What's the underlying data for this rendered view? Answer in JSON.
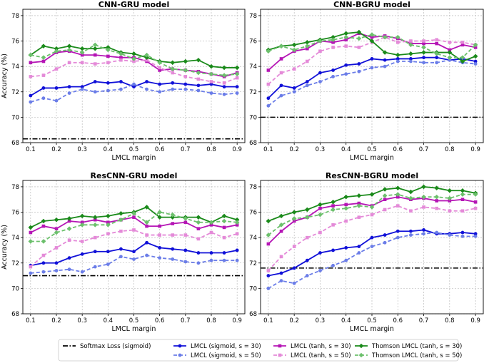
{
  "chart_data": [
    {
      "type": "line",
      "title": "CNN-GRU model",
      "xlabel": "LMCL margin",
      "ylabel": "Accuracy (%)",
      "ylim": [
        68,
        78.5
      ],
      "yticks": [
        68,
        70,
        72,
        74,
        76,
        78
      ],
      "x": [
        0.1,
        0.15,
        0.2,
        0.25,
        0.3,
        0.35,
        0.4,
        0.45,
        0.5,
        0.55,
        0.6,
        0.65,
        0.7,
        0.75,
        0.8,
        0.85,
        0.9
      ],
      "softmax": 68.3,
      "series": [
        {
          "name": "LMCL (sigmoid, s = 30)",
          "values": [
            71.7,
            72.3,
            72.3,
            72.4,
            72.4,
            72.8,
            72.7,
            72.8,
            72.4,
            72.8,
            72.6,
            72.7,
            72.6,
            72.5,
            72.6,
            72.4,
            72.4
          ]
        },
        {
          "name": "LMCL (sigmoid, s = 50)",
          "values": [
            71.2,
            71.5,
            71.3,
            71.9,
            72.2,
            72.0,
            72.1,
            72.2,
            72.6,
            72.2,
            72.0,
            72.2,
            72.2,
            72.1,
            71.9,
            71.8,
            71.9
          ]
        },
        {
          "name": "LMCL (tanh, s = 30)",
          "values": [
            74.3,
            74.4,
            75.1,
            75.2,
            74.9,
            74.9,
            74.8,
            74.7,
            74.7,
            74.4,
            73.7,
            73.8,
            73.7,
            73.6,
            73.4,
            73.2,
            73.5
          ]
        },
        {
          "name": "LMCL (tanh, s = 50)",
          "values": [
            73.2,
            73.3,
            73.8,
            74.3,
            74.3,
            74.2,
            74.3,
            74.5,
            74.4,
            74.5,
            73.9,
            73.5,
            73.2,
            73.0,
            72.8,
            72.7,
            73.1
          ]
        },
        {
          "name": "Thomson LMCL (tanh, s = 30)",
          "values": [
            74.9,
            75.6,
            75.4,
            75.6,
            75.4,
            75.4,
            75.5,
            75.1,
            75.0,
            74.7,
            74.4,
            74.3,
            74.4,
            74.5,
            74.0,
            73.9,
            73.9
          ]
        },
        {
          "name": "Thomson LMCL (tanh, s = 50)",
          "values": [
            74.9,
            74.7,
            75.2,
            75.3,
            75.1,
            75.7,
            75.3,
            75.0,
            74.6,
            74.9,
            74.3,
            73.8,
            73.7,
            73.5,
            73.4,
            73.3,
            73.4
          ]
        }
      ]
    },
    {
      "type": "line",
      "title": "CNN-BGRU model",
      "xlabel": "LMCL margin",
      "ylabel": "",
      "ylim": [
        68,
        78.5
      ],
      "yticks": [
        68,
        70,
        72,
        74,
        76,
        78
      ],
      "x": [
        0.1,
        0.15,
        0.2,
        0.25,
        0.3,
        0.35,
        0.4,
        0.45,
        0.5,
        0.55,
        0.6,
        0.65,
        0.7,
        0.75,
        0.8,
        0.85,
        0.9
      ],
      "softmax": 70.0,
      "series": [
        {
          "name": "LMCL (sigmoid, s = 30)",
          "values": [
            71.5,
            72.5,
            72.3,
            72.8,
            73.5,
            73.7,
            74.1,
            74.2,
            74.6,
            74.5,
            74.6,
            74.6,
            74.7,
            74.7,
            74.5,
            74.6,
            74.4
          ]
        },
        {
          "name": "LMCL (sigmoid, s = 50)",
          "values": [
            70.9,
            71.7,
            72.0,
            72.5,
            72.8,
            73.2,
            73.4,
            73.6,
            73.9,
            74.0,
            74.4,
            74.4,
            74.3,
            74.3,
            74.5,
            74.3,
            74.2
          ]
        },
        {
          "name": "LMCL (tanh, s = 30)",
          "values": [
            73.7,
            74.6,
            75.2,
            75.4,
            76.0,
            75.9,
            76.1,
            76.6,
            76.3,
            76.4,
            76.2,
            75.8,
            75.8,
            75.8,
            75.3,
            75.7,
            75.5
          ]
        },
        {
          "name": "LMCL (tanh, s = 50)",
          "values": [
            72.6,
            73.5,
            73.8,
            74.4,
            75.2,
            75.5,
            75.6,
            75.5,
            75.9,
            76.3,
            75.9,
            76.0,
            76.0,
            76.1,
            75.9,
            75.9,
            75.7
          ]
        },
        {
          "name": "Thomson LMCL (tanh, s = 30)",
          "values": [
            75.3,
            75.6,
            75.7,
            75.9,
            76.1,
            76.3,
            76.6,
            76.7,
            76.0,
            75.1,
            74.9,
            75.0,
            75.1,
            75.1,
            75.1,
            74.4,
            74.8
          ]
        },
        {
          "name": "Thomson LMCL (tanh, s = 50)",
          "values": [
            75.2,
            75.6,
            75.3,
            75.6,
            76.0,
            76.1,
            76.3,
            76.2,
            76.5,
            76.3,
            76.3,
            75.7,
            75.5,
            75.0,
            74.7,
            74.7,
            75.7
          ]
        }
      ]
    },
    {
      "type": "line",
      "title": "ResCNN-GRU model",
      "xlabel": "LMCL margin",
      "ylabel": "Accuracy (%)",
      "ylim": [
        68,
        78.5
      ],
      "yticks": [
        68,
        70,
        72,
        74,
        76,
        78
      ],
      "x": [
        0.1,
        0.15,
        0.2,
        0.25,
        0.3,
        0.35,
        0.4,
        0.45,
        0.5,
        0.55,
        0.6,
        0.65,
        0.7,
        0.75,
        0.8,
        0.85,
        0.9
      ],
      "softmax": 71.0,
      "series": [
        {
          "name": "LMCL (sigmoid, s = 30)",
          "values": [
            71.8,
            72.0,
            72.0,
            72.4,
            72.7,
            72.9,
            72.9,
            73.1,
            72.9,
            73.6,
            73.2,
            73.1,
            73.0,
            72.8,
            72.8,
            72.8,
            73.0
          ]
        },
        {
          "name": "LMCL (sigmoid, s = 50)",
          "values": [
            71.2,
            71.3,
            71.4,
            71.5,
            71.3,
            71.7,
            71.9,
            72.5,
            72.3,
            72.6,
            72.4,
            72.3,
            72.1,
            72.0,
            72.2,
            72.2,
            72.2
          ]
        },
        {
          "name": "LMCL (tanh, s = 30)",
          "values": [
            74.4,
            74.9,
            74.7,
            75.3,
            75.2,
            75.4,
            75.2,
            75.4,
            75.6,
            74.9,
            74.9,
            75.1,
            75.2,
            74.7,
            75.0,
            74.8,
            75.0
          ]
        },
        {
          "name": "LMCL (tanh, s = 50)",
          "values": [
            71.7,
            72.6,
            73.2,
            73.8,
            73.7,
            74.0,
            74.3,
            74.5,
            74.6,
            74.2,
            74.2,
            74.2,
            74.2,
            73.9,
            74.4,
            74.0,
            74.3
          ]
        },
        {
          "name": "Thomson LMCL (tanh, s = 30)",
          "values": [
            74.8,
            75.3,
            75.4,
            75.5,
            75.7,
            75.6,
            75.7,
            75.9,
            76.0,
            76.4,
            75.6,
            75.6,
            75.6,
            75.6,
            75.2,
            75.7,
            75.4
          ]
        },
        {
          "name": "Thomson LMCL (tanh, s = 50)",
          "values": [
            73.7,
            73.7,
            74.4,
            74.7,
            75.0,
            75.0,
            75.0,
            75.4,
            75.9,
            75.2,
            76.0,
            75.8,
            75.5,
            75.2,
            75.2,
            75.3,
            75.2
          ]
        }
      ]
    },
    {
      "type": "line",
      "title": "ResCNN-BGRU model",
      "xlabel": "LMCL margin",
      "ylabel": "",
      "ylim": [
        68,
        78.5
      ],
      "yticks": [
        68,
        70,
        72,
        74,
        76,
        78
      ],
      "x": [
        0.1,
        0.15,
        0.2,
        0.25,
        0.3,
        0.35,
        0.4,
        0.45,
        0.5,
        0.55,
        0.6,
        0.65,
        0.7,
        0.75,
        0.8,
        0.85,
        0.9
      ],
      "softmax": 71.6,
      "series": [
        {
          "name": "LMCL (sigmoid, s = 30)",
          "values": [
            71.0,
            71.2,
            71.6,
            72.2,
            72.8,
            73.0,
            73.2,
            73.3,
            74.0,
            74.2,
            74.5,
            74.5,
            74.6,
            74.3,
            74.3,
            74.4,
            74.3
          ]
        },
        {
          "name": "LMCL (sigmoid, s = 50)",
          "values": [
            70.0,
            70.6,
            70.4,
            71.0,
            71.4,
            71.8,
            72.2,
            72.8,
            73.3,
            73.6,
            74.0,
            74.2,
            74.3,
            74.4,
            74.2,
            74.1,
            74.1
          ]
        },
        {
          "name": "LMCL (tanh, s = 30)",
          "values": [
            73.5,
            74.5,
            75.3,
            75.6,
            76.3,
            76.5,
            76.6,
            76.7,
            76.5,
            77.0,
            77.2,
            77.0,
            77.1,
            76.9,
            76.9,
            77.0,
            76.8
          ]
        },
        {
          "name": "LMCL (tanh, s = 50)",
          "values": [
            71.4,
            72.5,
            73.3,
            74.0,
            74.4,
            75.0,
            75.3,
            75.6,
            75.8,
            76.2,
            76.5,
            76.1,
            76.4,
            76.3,
            76.1,
            76.1,
            76.3
          ]
        },
        {
          "name": "Thomson LMCL (tanh, s = 30)",
          "values": [
            75.3,
            75.7,
            76.0,
            76.2,
            76.6,
            76.8,
            77.2,
            77.3,
            77.4,
            77.8,
            77.9,
            77.6,
            78.0,
            77.9,
            77.7,
            77.7,
            77.5
          ]
        },
        {
          "name": "Thomson LMCL (tanh, s = 50)",
          "values": [
            74.2,
            75.0,
            75.5,
            75.6,
            75.8,
            76.2,
            76.3,
            76.5,
            76.4,
            77.3,
            77.4,
            77.1,
            77.2,
            77.2,
            77.1,
            77.4,
            77.4
          ]
        }
      ]
    }
  ],
  "legend": [
    {
      "label": "Softmax Loss (sigmoid)",
      "color": "#000000",
      "style": "dashdot",
      "marker": "none"
    },
    {
      "label": "LMCL (sigmoid, s = 30)",
      "color": "#1010d8",
      "style": "solid",
      "marker": "circle"
    },
    {
      "label": "LMCL (sigmoid, s = 50)",
      "color": "#6b7de8",
      "style": "dashed",
      "marker": "circle"
    },
    {
      "label": "LMCL (tanh, s = 30)",
      "color": "#b515b5",
      "style": "solid",
      "marker": "square"
    },
    {
      "label": "LMCL (tanh, s = 50)",
      "color": "#e48ad8",
      "style": "dashed",
      "marker": "square"
    },
    {
      "label": "Thomson LMCL (tanh, s = 30)",
      "color": "#1a8a1a",
      "style": "solid",
      "marker": "diamond"
    },
    {
      "label": "Thomson LMCL (tanh, s = 50)",
      "color": "#6cc06c",
      "style": "dashed",
      "marker": "diamond"
    }
  ]
}
